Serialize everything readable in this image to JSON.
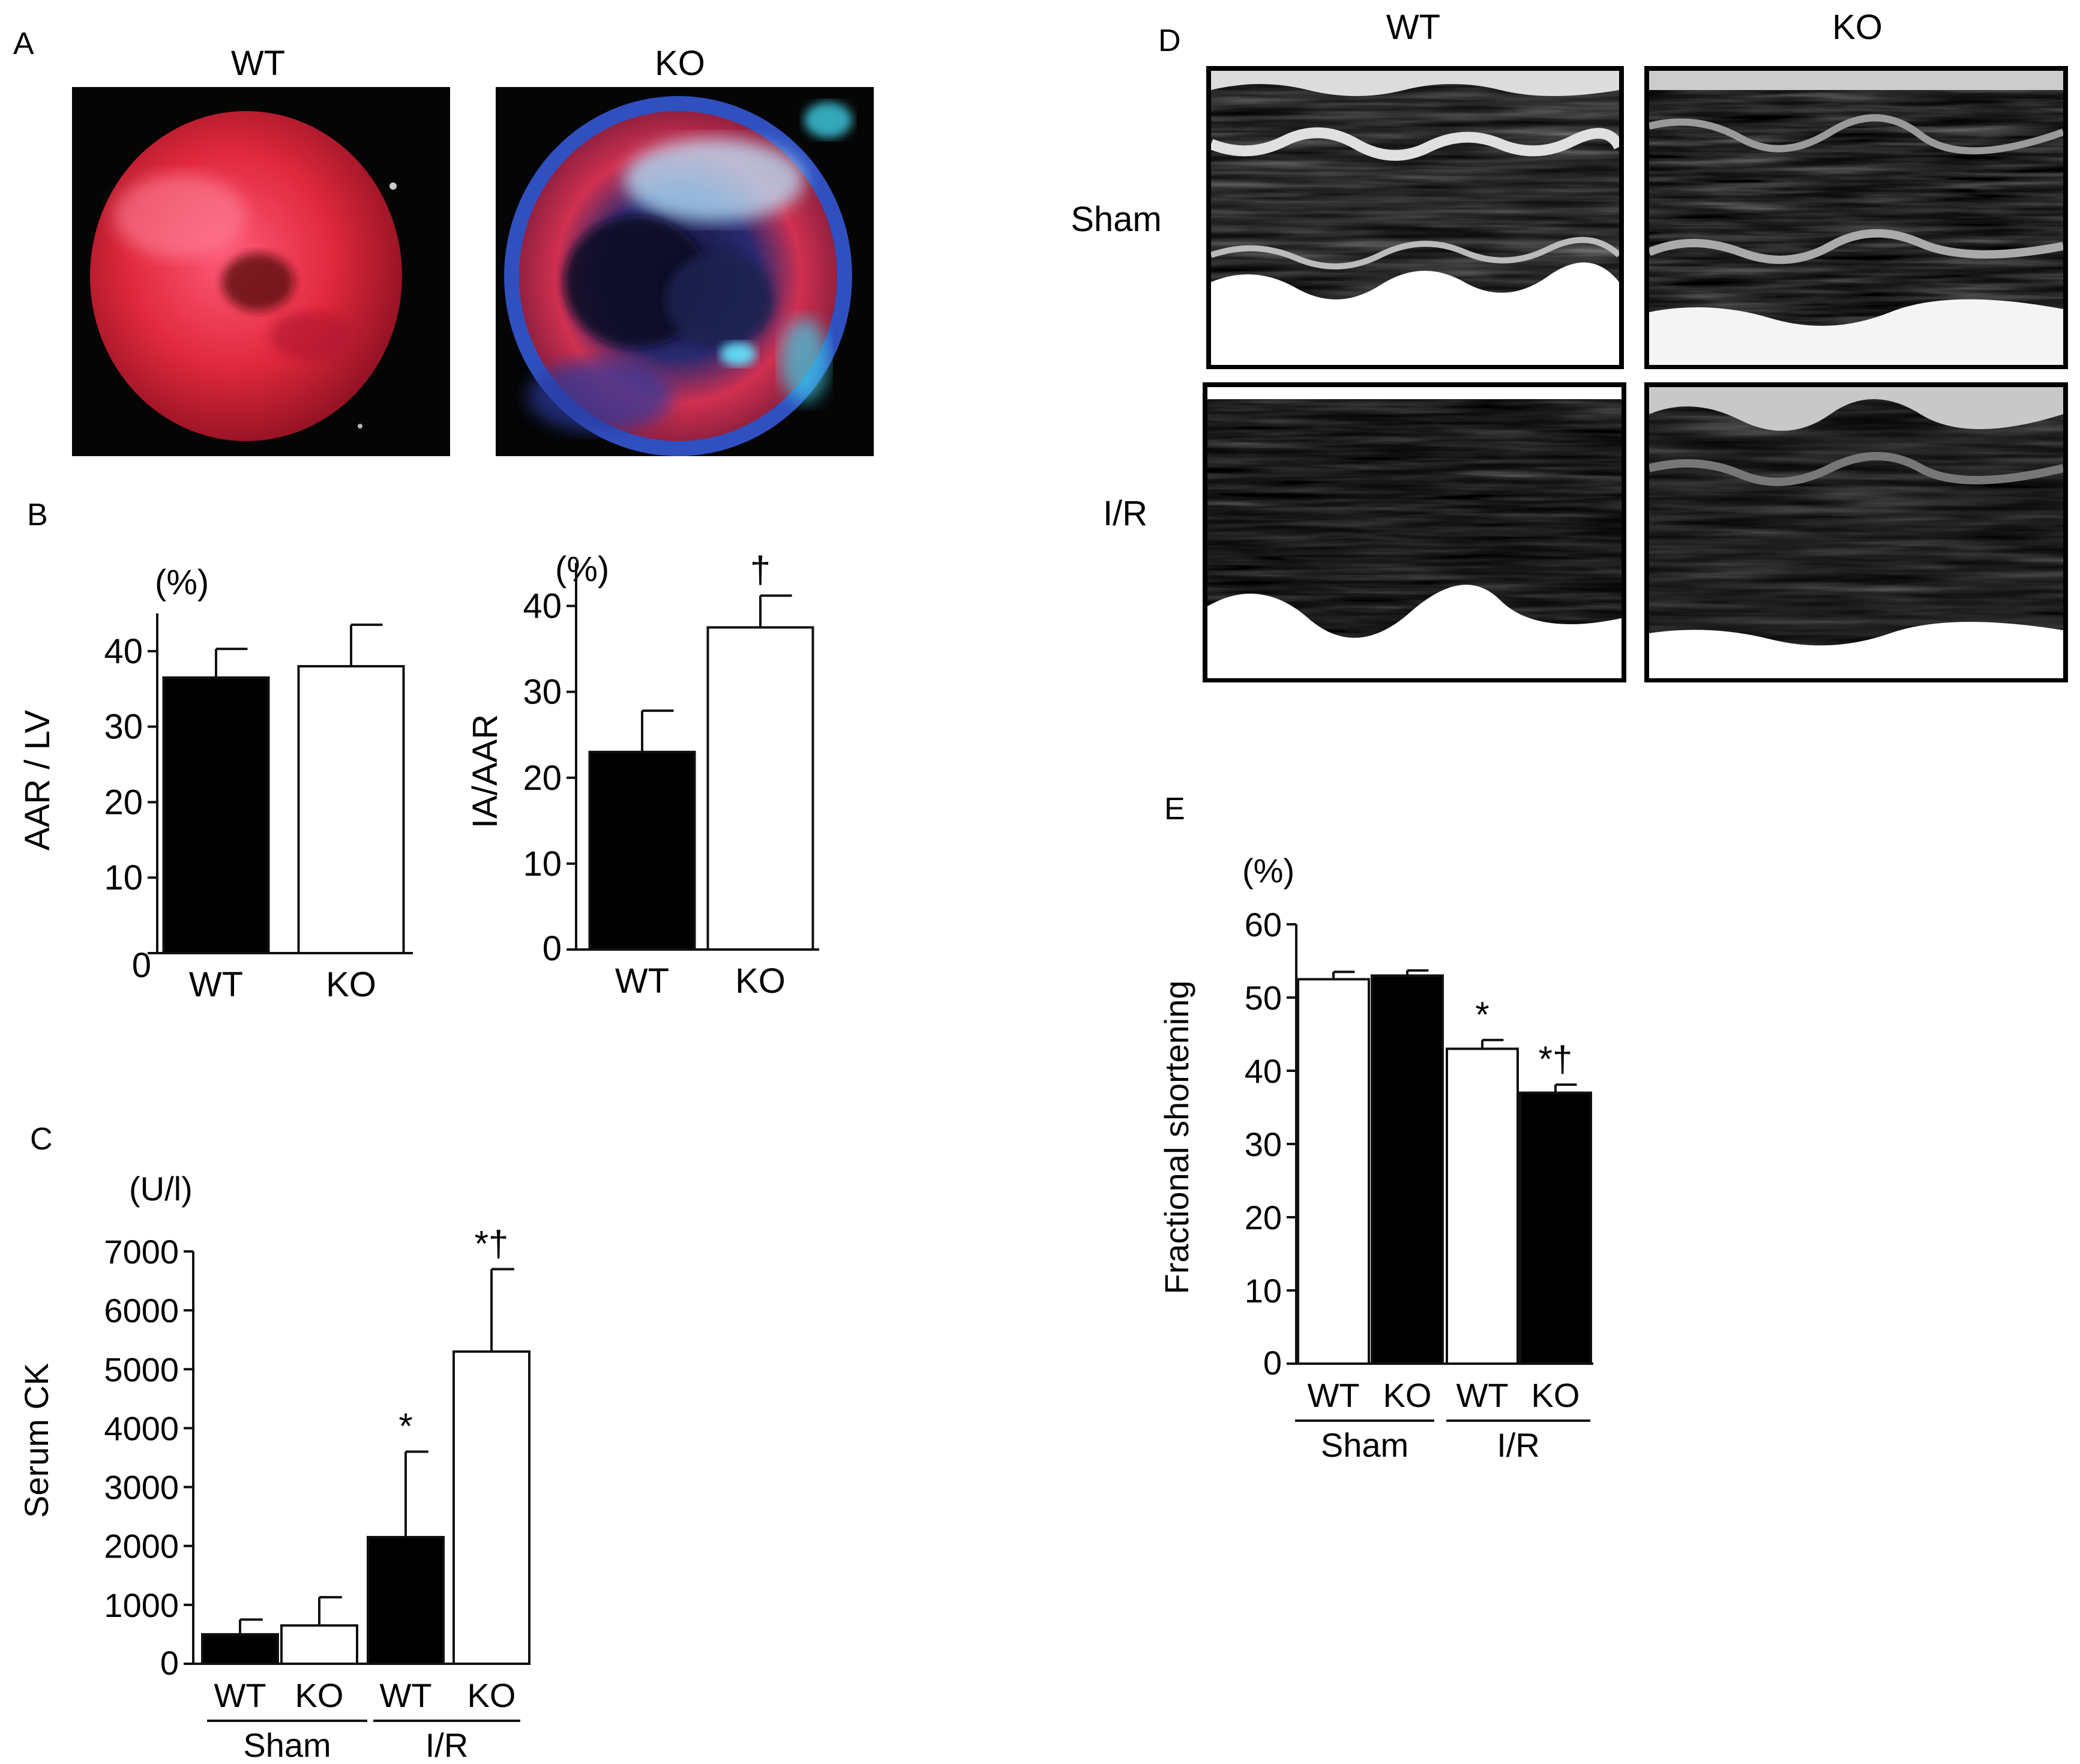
{
  "panels": {
    "A": {
      "letter": "A",
      "wt_label": "WT",
      "ko_label": "KO"
    },
    "B": {
      "letter": "B"
    },
    "C": {
      "letter": "C"
    },
    "D": {
      "letter": "D",
      "wt_label": "WT",
      "ko_label": "KO",
      "row_sham": "Sham",
      "row_ir": "I/R"
    },
    "E": {
      "letter": "E"
    }
  },
  "colors": {
    "black_bar": "#000000",
    "white_bar": "#ffffff",
    "heart_red": "#e0283c",
    "heart_dark": "#8a1020",
    "stain_blue": "#2a50c8",
    "stain_cyan": "#40d0e8"
  },
  "chart_data": [
    {
      "id": "B1",
      "type": "bar",
      "unit_label": "(%)",
      "ylabel": "AAR / LV",
      "ylim": [
        0,
        45
      ],
      "yticks": [
        "0",
        "10",
        "20",
        "30",
        "40"
      ],
      "categories": [
        "WT",
        "KO"
      ],
      "values": [
        36.5,
        38
      ],
      "errors": [
        3.8,
        5.5
      ],
      "fills": [
        "black",
        "white"
      ],
      "markers": [
        "",
        ""
      ]
    },
    {
      "id": "B2",
      "type": "bar",
      "unit_label": "(%)",
      "ylabel": "IA/AAR",
      "ylim": [
        0,
        45
      ],
      "yticks": [
        "0",
        "10",
        "20",
        "30",
        "40"
      ],
      "categories": [
        "WT",
        "KO"
      ],
      "values": [
        23,
        37.5
      ],
      "errors": [
        4.8,
        3.7
      ],
      "fills": [
        "black",
        "white"
      ],
      "markers": [
        "",
        "†"
      ]
    },
    {
      "id": "C",
      "type": "bar",
      "unit_label": "(U/l)",
      "ylabel": "Serum CK",
      "ylim": [
        0,
        7000
      ],
      "yticks": [
        "0",
        "1000",
        "2000",
        "3000",
        "4000",
        "5000",
        "6000",
        "7000"
      ],
      "categories": [
        "WT",
        "KO",
        "WT",
        "KO"
      ],
      "groups": [
        "Sham",
        "I/R"
      ],
      "values": [
        500,
        650,
        2150,
        5300
      ],
      "errors": [
        250,
        480,
        1450,
        1400
      ],
      "fills": [
        "black",
        "white",
        "black",
        "white"
      ],
      "markers": [
        "",
        "",
        "*",
        "*†"
      ]
    },
    {
      "id": "E",
      "type": "bar",
      "unit_label": "(%)",
      "ylabel": "Fractional shortening",
      "ylim": [
        0,
        60
      ],
      "yticks": [
        "0",
        "10",
        "20",
        "30",
        "40",
        "50",
        "60"
      ],
      "categories": [
        "WT",
        "KO",
        "WT",
        "KO"
      ],
      "groups": [
        "Sham",
        "I/R"
      ],
      "values": [
        52.5,
        53,
        43,
        37
      ],
      "errors": [
        1.0,
        0.7,
        1.2,
        1.1
      ],
      "fills": [
        "white",
        "black",
        "white",
        "black"
      ],
      "markers": [
        "",
        "",
        "*",
        "*†"
      ]
    }
  ]
}
